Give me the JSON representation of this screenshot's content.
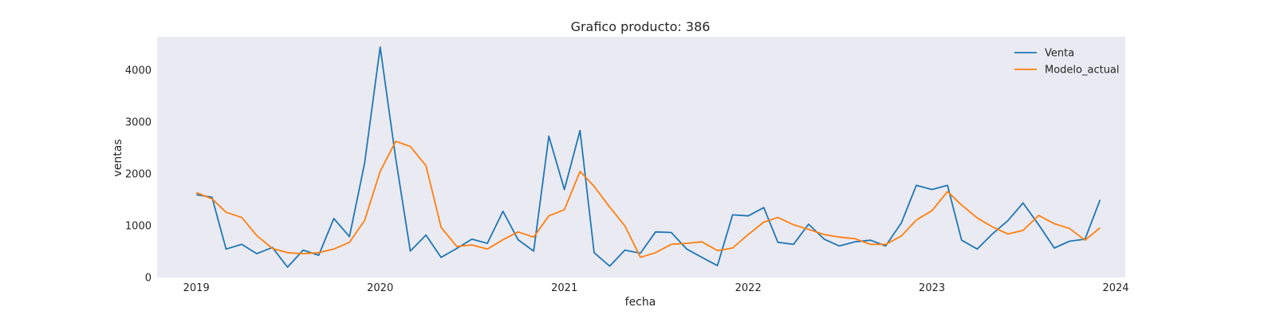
{
  "chart_data": {
    "type": "line",
    "title": "Grafico producto: 386",
    "xlabel": "fecha",
    "ylabel": "ventas",
    "x_ticks": [
      "2019",
      "2020",
      "2021",
      "2022",
      "2023",
      "2024"
    ],
    "y_ticks": [
      "0",
      "1000",
      "2000",
      "3000",
      "4000"
    ],
    "xlim": [
      "2018-10-15",
      "2024-01-20"
    ],
    "ylim": [
      0,
      4650
    ],
    "grid": false,
    "legend": "top-right",
    "x": [
      "2019-01",
      "2019-02",
      "2019-03",
      "2019-04",
      "2019-05",
      "2019-06",
      "2019-07",
      "2019-08",
      "2019-09",
      "2019-10",
      "2019-11",
      "2019-12",
      "2020-01",
      "2020-02",
      "2020-03",
      "2020-04",
      "2020-05",
      "2020-06",
      "2020-07",
      "2020-08",
      "2020-09",
      "2020-10",
      "2020-11",
      "2020-12",
      "2021-01",
      "2021-02",
      "2021-03",
      "2021-04",
      "2021-05",
      "2021-06",
      "2021-07",
      "2021-08",
      "2021-09",
      "2021-10",
      "2021-11",
      "2021-12",
      "2022-01",
      "2022-02",
      "2022-03",
      "2022-04",
      "2022-05",
      "2022-06",
      "2022-07",
      "2022-08",
      "2022-09",
      "2022-10",
      "2022-11",
      "2022-12",
      "2023-01",
      "2023-02",
      "2023-03",
      "2023-04",
      "2023-05",
      "2023-06",
      "2023-07",
      "2023-08",
      "2023-09",
      "2023-10",
      "2023-11",
      "2023-12"
    ],
    "series": [
      {
        "name": "Venta",
        "color": "#1f77b4",
        "values": [
          1600,
          1550,
          550,
          640,
          460,
          580,
          200,
          530,
          430,
          1140,
          790,
          2200,
          4450,
          2300,
          510,
          820,
          390,
          560,
          740,
          660,
          1280,
          730,
          510,
          2730,
          1700,
          2840,
          480,
          220,
          530,
          470,
          880,
          870,
          550,
          390,
          230,
          1210,
          1190,
          1350,
          680,
          640,
          1030,
          740,
          610,
          690,
          720,
          610,
          1050,
          1780,
          1700,
          1780,
          720,
          550,
          840,
          1100,
          1440,
          1020,
          570,
          700,
          740,
          1500
        ]
      },
      {
        "name": "Modelo_actual",
        "color": "#ff7f0e",
        "values": [
          1640,
          1520,
          1260,
          1160,
          810,
          560,
          480,
          460,
          480,
          550,
          680,
          1100,
          2050,
          2630,
          2530,
          2160,
          970,
          600,
          630,
          550,
          730,
          880,
          780,
          1190,
          1310,
          2050,
          1760,
          1360,
          1000,
          390,
          480,
          640,
          660,
          690,
          520,
          570,
          830,
          1070,
          1160,
          1020,
          930,
          830,
          780,
          750,
          640,
          640,
          800,
          1110,
          1290,
          1660,
          1400,
          1150,
          980,
          840,
          910,
          1200,
          1040,
          950,
          720,
          960
        ]
      }
    ]
  }
}
